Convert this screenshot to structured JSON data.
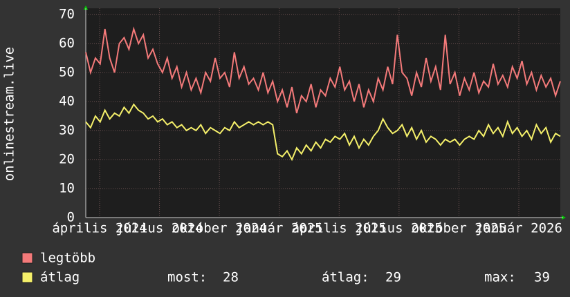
{
  "chart_data": {
    "type": "line",
    "y_label": "onlinestream.live",
    "x_labels": [
      "április 2024",
      "július 2024",
      "október 2024",
      "január 2025",
      "április 2025",
      "július 2025",
      "október 2025",
      "január 2026"
    ],
    "ylim": [
      0,
      70
    ],
    "yticks": [
      0,
      10,
      20,
      30,
      40,
      50,
      60,
      70
    ],
    "grid": true,
    "series": [
      {
        "name": "legtöbb",
        "color": "#f47a7a",
        "values": [
          57,
          50,
          55,
          53,
          65,
          55,
          50,
          60,
          62,
          58,
          65,
          60,
          63,
          55,
          58,
          53,
          50,
          55,
          48,
          52,
          45,
          50,
          44,
          48,
          43,
          50,
          47,
          55,
          48,
          50,
          45,
          57,
          48,
          52,
          46,
          48,
          44,
          50,
          43,
          47,
          40,
          44,
          38,
          45,
          36,
          42,
          40,
          46,
          38,
          44,
          42,
          48,
          45,
          52,
          44,
          47,
          40,
          46,
          38,
          44,
          40,
          48,
          44,
          52,
          46,
          63,
          50,
          48,
          42,
          50,
          45,
          55,
          47,
          52,
          44,
          63,
          46,
          50,
          42,
          48,
          44,
          50,
          43,
          47,
          45,
          53,
          46,
          49,
          45,
          52,
          48,
          54,
          46,
          50,
          44,
          49,
          45,
          48,
          42,
          47
        ]
      },
      {
        "name": "átlag",
        "color": "#f5f06a",
        "values": [
          33,
          31,
          35,
          33,
          37,
          34,
          36,
          35,
          38,
          36,
          39,
          37,
          36,
          34,
          35,
          33,
          34,
          32,
          33,
          31,
          32,
          30,
          31,
          30,
          32,
          29,
          31,
          30,
          29,
          31,
          30,
          33,
          31,
          32,
          33,
          32,
          33,
          32,
          33,
          32,
          22,
          21,
          23,
          20,
          24,
          22,
          25,
          23,
          26,
          24,
          27,
          26,
          28,
          27,
          29,
          25,
          28,
          24,
          27,
          25,
          28,
          30,
          34,
          31,
          29,
          30,
          32,
          28,
          31,
          27,
          30,
          26,
          28,
          27,
          25,
          27,
          26,
          27,
          25,
          27,
          28,
          27,
          30,
          28,
          32,
          29,
          31,
          28,
          33,
          29,
          31,
          28,
          30,
          27,
          32,
          29,
          31,
          26,
          29,
          28
        ]
      }
    ],
    "stats": [
      {
        "label": "most:",
        "value": 28
      },
      {
        "label": "átlag:",
        "value": 29
      },
      {
        "label": "max:",
        "value": 39
      }
    ]
  }
}
